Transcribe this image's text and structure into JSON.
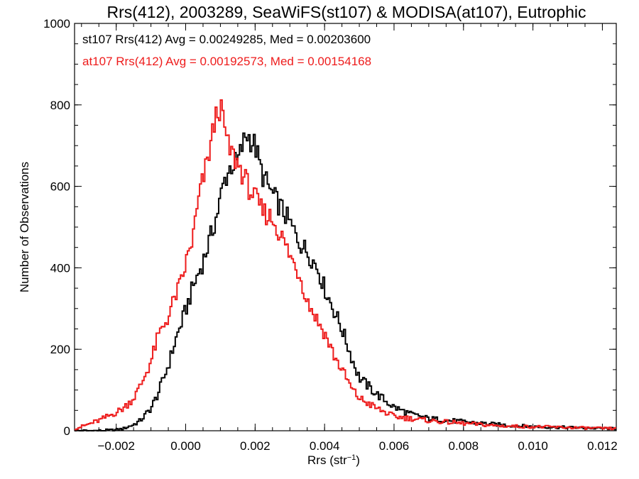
{
  "chart_data": {
    "type": "line",
    "title": "Rrs(412), 2003289, SeaWiFS(st107) & MODISA(at107), Eutrophic",
    "xlabel_main": "Rrs (str",
    "xlabel_sup": "−1",
    "xlabel_end": ")",
    "ylabel": "Number of Observations",
    "xlim": [
      -0.0032,
      0.0124
    ],
    "ylim": [
      0,
      1000
    ],
    "grid": false,
    "legend_placement": "top-left",
    "x_ticks": [
      -0.002,
      0.0,
      0.002,
      0.004,
      0.006,
      0.008,
      0.01,
      0.012
    ],
    "x_tick_labels": [
      "−0.002",
      "0.000",
      "0.002",
      "0.004",
      "0.006",
      "0.008",
      "0.010",
      "0.012"
    ],
    "y_ticks": [
      0,
      200,
      400,
      600,
      800,
      1000
    ],
    "y_tick_labels": [
      "0",
      "200",
      "400",
      "600",
      "800",
      "1000"
    ],
    "bin_width": 5e-05,
    "series": [
      {
        "legend_text": "st107 Rrs(412) Avg = 0.00249285, Med = 0.00203600",
        "color": "#000000",
        "mode": 0.00175,
        "peak": 730,
        "x": [
          -0.0032,
          -0.0025,
          -0.002,
          -0.0018,
          -0.0015,
          -0.0013,
          -0.001,
          -0.0008,
          -0.0005,
          -0.0003,
          0.0,
          0.0002,
          0.0005,
          0.0007,
          0.0009,
          0.0011,
          0.0013,
          0.0015,
          0.00175,
          0.002,
          0.0022,
          0.0025,
          0.0028,
          0.003,
          0.0033,
          0.0035,
          0.0038,
          0.004,
          0.0042,
          0.0045,
          0.0048,
          0.005,
          0.0055,
          0.006,
          0.0065,
          0.007,
          0.008,
          0.009,
          0.01,
          0.011,
          0.0124
        ],
        "y": [
          0,
          0,
          2,
          5,
          15,
          25,
          55,
          90,
          160,
          220,
          295,
          350,
          415,
          470,
          530,
          610,
          650,
          660,
          730,
          700,
          630,
          580,
          540,
          510,
          460,
          440,
          400,
          350,
          310,
          250,
          175,
          130,
          90,
          58,
          40,
          30,
          22,
          15,
          10,
          8,
          5
        ]
      },
      {
        "legend_text": "at107 Rrs(412) Avg = 0.00192573, Med = 0.00154168",
        "color": "#ee1c1c",
        "mode": 0.00095,
        "peak": 800,
        "x": [
          -0.0032,
          -0.003,
          -0.0025,
          -0.002,
          -0.0018,
          -0.0015,
          -0.0013,
          -0.001,
          -0.0008,
          -0.0005,
          -0.0003,
          -0.0001,
          0.0,
          0.0002,
          0.0004,
          0.0006,
          0.0008,
          0.00095,
          0.0011,
          0.0012,
          0.0014,
          0.0016,
          0.0018,
          0.002,
          0.0022,
          0.0025,
          0.0028,
          0.003,
          0.0033,
          0.0035,
          0.0038,
          0.004,
          0.0043,
          0.0045,
          0.0048,
          0.005,
          0.0055,
          0.006,
          0.0065,
          0.007,
          0.008,
          0.009,
          0.01,
          0.011,
          0.0124
        ],
        "y": [
          5,
          10,
          25,
          45,
          55,
          80,
          110,
          170,
          230,
          280,
          330,
          370,
          410,
          470,
          580,
          650,
          740,
          800,
          760,
          700,
          670,
          640,
          600,
          570,
          540,
          520,
          470,
          430,
          380,
          320,
          270,
          240,
          180,
          150,
          100,
          80,
          55,
          35,
          30,
          25,
          18,
          12,
          10,
          8,
          5
        ]
      }
    ]
  }
}
